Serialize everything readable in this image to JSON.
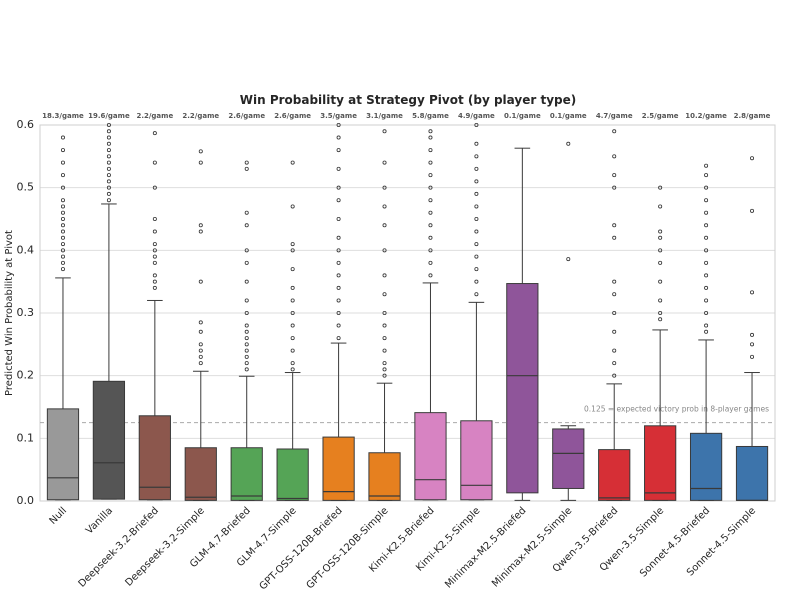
{
  "chart_data": {
    "type": "box",
    "title": "Win Probability at Strategy Pivot (by player type)",
    "y_label": "Predicted Win Probability at Pivot",
    "categories": [
      "Null",
      "Vanilla",
      "Deepseek-3.2-Briefed",
      "Deepseek-3.2-Simple",
      "GLM-4.7-Briefed",
      "GLM-4.7-Simple",
      "GPT-OSS-120B-Briefed",
      "GPT-OSS-120B-Simple",
      "Kimi-K2.5-Briefed",
      "Kimi-K2.5-Simple",
      "Minimax-M2.5-Briefed",
      "Minimax-M2.5-Simple",
      "Qwen-3.5-Briefed",
      "Qwen-3.5-Simple",
      "Sonnet-4.5-Briefed",
      "Sonnet-4.5-Simple"
    ],
    "top_labels": [
      "18.3/game",
      "19.6/game",
      "2.2/game",
      "2.2/game",
      "2.6/game",
      "2.6/game",
      "3.5/game",
      "3.1/game",
      "5.8/game",
      "4.9/game",
      "0.1/game",
      "0.1/game",
      "4.7/game",
      "2.5/game",
      "10.2/game",
      "2.8/game"
    ],
    "colors": [
      "#999999",
      "#555555",
      "#8c574d",
      "#8c574d",
      "#55a456",
      "#55a456",
      "#e6801f",
      "#e6801f",
      "#d783c2",
      "#d783c2",
      "#8f559a",
      "#8f559a",
      "#d62f36",
      "#d62f36",
      "#3d74ab",
      "#3d74ab"
    ],
    "boxes": [
      {
        "whislo": 0.002,
        "q1": 0.002,
        "med": 0.037,
        "q3": 0.147,
        "whishi": 0.356,
        "fliers": [
          0.37,
          0.38,
          0.39,
          0.4,
          0.41,
          0.42,
          0.43,
          0.44,
          0.45,
          0.46,
          0.47,
          0.48,
          0.5,
          0.52,
          0.54,
          0.56,
          0.58
        ]
      },
      {
        "whislo": 0.003,
        "q1": 0.003,
        "med": 0.061,
        "q3": 0.191,
        "whishi": 0.474,
        "fliers": [
          0.48,
          0.49,
          0.5,
          0.51,
          0.52,
          0.53,
          0.54,
          0.55,
          0.56,
          0.57,
          0.58,
          0.59,
          0.6
        ]
      },
      {
        "whislo": 0.002,
        "q1": 0.002,
        "med": 0.022,
        "q3": 0.136,
        "whishi": 0.32,
        "fliers": [
          0.34,
          0.35,
          0.36,
          0.38,
          0.39,
          0.4,
          0.41,
          0.43,
          0.45,
          0.5,
          0.54,
          0.587
        ]
      },
      {
        "whislo": 0.001,
        "q1": 0.001,
        "med": 0.006,
        "q3": 0.085,
        "whishi": 0.207,
        "fliers": [
          0.22,
          0.23,
          0.24,
          0.25,
          0.27,
          0.285,
          0.35,
          0.43,
          0.44,
          0.54,
          0.558
        ]
      },
      {
        "whislo": 0.001,
        "q1": 0.001,
        "med": 0.008,
        "q3": 0.085,
        "whishi": 0.199,
        "fliers": [
          0.21,
          0.22,
          0.23,
          0.24,
          0.25,
          0.26,
          0.27,
          0.28,
          0.3,
          0.32,
          0.35,
          0.38,
          0.4,
          0.44,
          0.46,
          0.53,
          0.54
        ]
      },
      {
        "whislo": 0.001,
        "q1": 0.001,
        "med": 0.004,
        "q3": 0.083,
        "whishi": 0.205,
        "fliers": [
          0.21,
          0.22,
          0.24,
          0.26,
          0.28,
          0.3,
          0.32,
          0.34,
          0.37,
          0.4,
          0.41,
          0.47,
          0.54
        ]
      },
      {
        "whislo": 0.001,
        "q1": 0.001,
        "med": 0.015,
        "q3": 0.102,
        "whishi": 0.252,
        "fliers": [
          0.26,
          0.28,
          0.3,
          0.32,
          0.34,
          0.36,
          0.38,
          0.4,
          0.42,
          0.45,
          0.48,
          0.5,
          0.53,
          0.56,
          0.58,
          0.6
        ]
      },
      {
        "whislo": 0.001,
        "q1": 0.001,
        "med": 0.008,
        "q3": 0.077,
        "whishi": 0.188,
        "fliers": [
          0.2,
          0.21,
          0.22,
          0.24,
          0.26,
          0.28,
          0.3,
          0.33,
          0.36,
          0.4,
          0.44,
          0.47,
          0.5,
          0.54,
          0.59
        ]
      },
      {
        "whislo": 0.002,
        "q1": 0.002,
        "med": 0.034,
        "q3": 0.141,
        "whishi": 0.348,
        "fliers": [
          0.36,
          0.38,
          0.4,
          0.42,
          0.44,
          0.46,
          0.48,
          0.5,
          0.52,
          0.54,
          0.56,
          0.58,
          0.59
        ]
      },
      {
        "whislo": 0.002,
        "q1": 0.002,
        "med": 0.025,
        "q3": 0.128,
        "whishi": 0.317,
        "fliers": [
          0.33,
          0.35,
          0.37,
          0.39,
          0.41,
          0.43,
          0.45,
          0.47,
          0.49,
          0.51,
          0.53,
          0.55,
          0.57,
          0.6
        ]
      },
      {
        "whislo": 0.001,
        "q1": 0.013,
        "med": 0.2,
        "q3": 0.347,
        "whishi": 0.563,
        "fliers": []
      },
      {
        "whislo": 0.001,
        "q1": 0.02,
        "med": 0.076,
        "q3": 0.115,
        "whishi": 0.12,
        "fliers": [
          0.386,
          0.57
        ]
      },
      {
        "whislo": 0.001,
        "q1": 0.001,
        "med": 0.005,
        "q3": 0.082,
        "whishi": 0.187,
        "fliers": [
          0.2,
          0.22,
          0.24,
          0.27,
          0.3,
          0.33,
          0.35,
          0.42,
          0.44,
          0.5,
          0.52,
          0.55,
          0.59
        ]
      },
      {
        "whislo": 0.001,
        "q1": 0.001,
        "med": 0.013,
        "q3": 0.12,
        "whishi": 0.273,
        "fliers": [
          0.29,
          0.3,
          0.32,
          0.35,
          0.38,
          0.4,
          0.42,
          0.43,
          0.47,
          0.5
        ]
      },
      {
        "whislo": 0.001,
        "q1": 0.001,
        "med": 0.02,
        "q3": 0.108,
        "whishi": 0.257,
        "fliers": [
          0.27,
          0.28,
          0.3,
          0.32,
          0.34,
          0.36,
          0.38,
          0.4,
          0.42,
          0.44,
          0.46,
          0.48,
          0.5,
          0.52,
          0.535
        ]
      },
      {
        "whislo": 0.001,
        "q1": 0.001,
        "med": 0.001,
        "q3": 0.087,
        "whishi": 0.205,
        "fliers": [
          0.23,
          0.25,
          0.265,
          0.333,
          0.463,
          0.547
        ]
      }
    ],
    "reference_line": {
      "value": 0.125,
      "label": "0.125 = expected victory prob in 8-player games"
    },
    "ylim": [
      0,
      0.6
    ],
    "yticks": [
      {
        "value": 0,
        "label": "0.0"
      },
      0.1,
      0.2,
      0.3,
      0.4,
      0.5,
      0.6
    ],
    "grid": true
  }
}
